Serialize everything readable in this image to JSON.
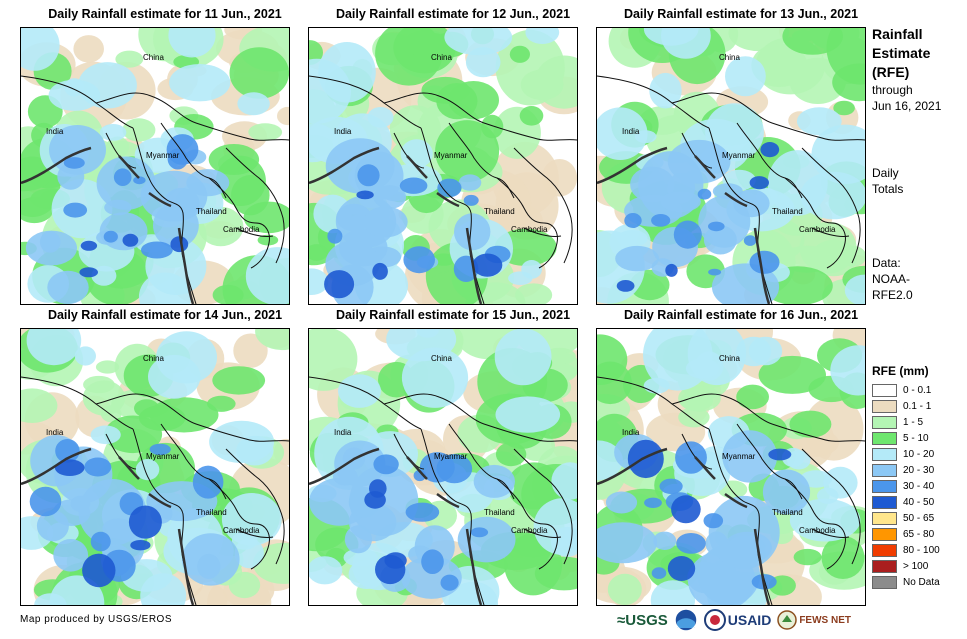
{
  "panels": [
    {
      "title": "Daily Rainfall estimate for 11 Jun., 2021"
    },
    {
      "title": "Daily Rainfall estimate for 12 Jun., 2021"
    },
    {
      "title": "Daily Rainfall estimate for 13 Jun., 2021"
    },
    {
      "title": "Daily Rainfall estimate for 14 Jun., 2021"
    },
    {
      "title": "Daily Rainfall estimate for 15 Jun., 2021"
    },
    {
      "title": "Daily Rainfall estimate for 16 Jun., 2021"
    }
  ],
  "map_labels": {
    "china": "China",
    "india": "India",
    "myanmar": "Myanmar",
    "thailand": "Thailand",
    "cambodia": "Cambodia"
  },
  "sidebar": {
    "title_line1": "Rainfall",
    "title_line2": "Estimate",
    "title_line3": "(RFE)",
    "through_line1": "through",
    "through_line2": "Jun 16, 2021",
    "daily_line1": "Daily",
    "daily_line2": "Totals",
    "data_line1": "Data:",
    "data_line2": "NOAA-",
    "data_line3": "RFE2.0"
  },
  "legend": {
    "title": "RFE (mm)",
    "items": [
      {
        "label": "0 - 0.1",
        "color": "#ffffff"
      },
      {
        "label": "0.1 - 1",
        "color": "#ecdcc0"
      },
      {
        "label": "1 - 5",
        "color": "#b4f5b4"
      },
      {
        "label": "5 - 10",
        "color": "#6ee66e"
      },
      {
        "label": "10 - 20",
        "color": "#b4eaf8"
      },
      {
        "label": "20 - 30",
        "color": "#8cc8f5"
      },
      {
        "label": "30 - 40",
        "color": "#4b96eb"
      },
      {
        "label": "40 - 50",
        "color": "#1e5ad2"
      },
      {
        "label": "50 - 65",
        "color": "#ffe68c"
      },
      {
        "label": "65 - 80",
        "color": "#ff9600"
      },
      {
        "label": "80 - 100",
        "color": "#f03c00"
      },
      {
        "label": "> 100",
        "color": "#aa1e1e"
      },
      {
        "label": "No Data",
        "color": "#8c8c8c"
      }
    ]
  },
  "footer": {
    "credit": "Map produced by USGS/EROS",
    "logo_usgs": "≈USGS",
    "logo_usaid": "USAID",
    "logo_fewsnet": "FEWS NET"
  }
}
